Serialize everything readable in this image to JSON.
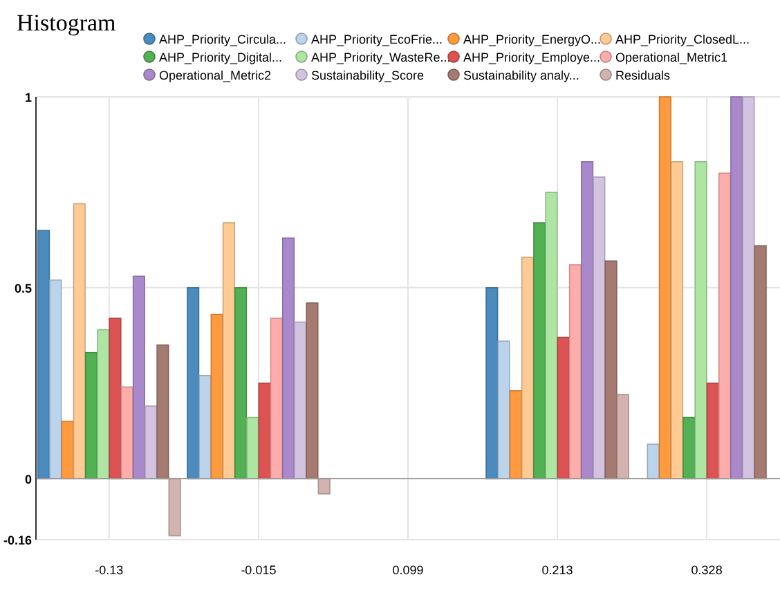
{
  "chart_data": {
    "type": "bar",
    "title": "Histogram",
    "categories": [
      "-0.13",
      "-0.015",
      "0.099",
      "0.213",
      "0.328"
    ],
    "series": [
      {
        "name": "AHP_Priority_Circula...",
        "color": "#4b8bbe",
        "values": [
          0.65,
          0.5,
          0,
          0.5,
          0
        ]
      },
      {
        "name": "AHP_Priority_EcoFrie...",
        "color": "#bcd3ec",
        "values": [
          0.52,
          0.27,
          0,
          0.36,
          0.09
        ]
      },
      {
        "name": "AHP_Priority_EnergyO...",
        "color": "#ff9a3e",
        "values": [
          0.15,
          0.43,
          0,
          0.23,
          1
        ]
      },
      {
        "name": "AHP_Priority_ClosedL...",
        "color": "#ffca94",
        "values": [
          0.72,
          0.67,
          0,
          0.58,
          0.83
        ]
      },
      {
        "name": "AHP_Priority_Digital...",
        "color": "#52b152",
        "values": [
          0.33,
          0.5,
          0,
          0.67,
          0.16
        ]
      },
      {
        "name": "AHP_Priority_WasteRe...",
        "color": "#ade5a3",
        "values": [
          0.39,
          0.16,
          0,
          0.75,
          0.83
        ]
      },
      {
        "name": "AHP_Priority_Employe...",
        "color": "#dd5354",
        "values": [
          0.42,
          0.25,
          0,
          0.37,
          0.25
        ]
      },
      {
        "name": "Operational_Metric1",
        "color": "#ffadab",
        "values": [
          0.24,
          0.42,
          0,
          0.56,
          0.8
        ]
      },
      {
        "name": "Operational_Metric2",
        "color": "#a989cb",
        "values": [
          0.53,
          0.63,
          0,
          0.83,
          1
        ]
      },
      {
        "name": "Sustainability_Score",
        "color": "#d3c3e0",
        "values": [
          0.19,
          0.41,
          0,
          0.79,
          1
        ]
      },
      {
        "name": "Sustainability analy...",
        "color": "#a57a71",
        "values": [
          0.35,
          0.46,
          0,
          0.57,
          0.61
        ]
      },
      {
        "name": "Residuals",
        "color": "#d3b3ad",
        "values": [
          -0.15,
          -0.04,
          0,
          0.22,
          null
        ]
      }
    ],
    "ylim": [
      -0.16,
      1
    ],
    "yticks": [
      -0.16,
      0,
      0.5,
      1
    ],
    "grid": true,
    "legend": "top"
  }
}
